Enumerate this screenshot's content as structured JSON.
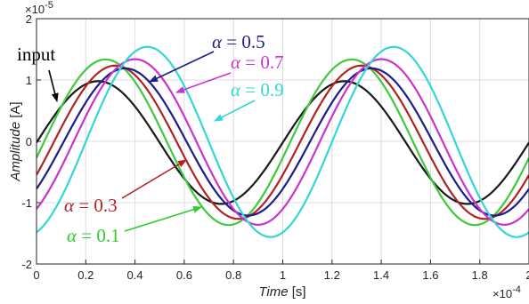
{
  "chart_data": {
    "type": "line",
    "xlabel": "Time",
    "xunit": " [s]",
    "ylabel": "Amplitude",
    "yunit": " [A]",
    "x_multiplier": "×10",
    "x_exponent": "-4",
    "y_multiplier": "×10",
    "y_exponent": "-5",
    "xlim": [
      0,
      0.0002
    ],
    "ylim": [
      -2e-05,
      2e-05
    ],
    "grid": true,
    "x_tick_labels": [
      "0",
      "0.2",
      "0.4",
      "0.6",
      "0.8",
      "1",
      "1.2",
      "1.4",
      "1.6",
      "1.8",
      "2"
    ],
    "y_tick_labels": [
      "-2",
      "-1",
      "0",
      "1",
      "2"
    ],
    "period_s": 0.0001,
    "series": [
      {
        "name": "input",
        "color": "#1a1a1a",
        "amplitude": 1e-05,
        "peak_time_s": 2.5e-05,
        "offset": -2e-07
      },
      {
        "name": "α = 0.1",
        "color": "#3ec93e",
        "amplitude": 1.35e-05,
        "peak_time_s": 2.8e-05,
        "offset": -1.5e-07
      },
      {
        "name": "α = 0.3",
        "color": "#b22222",
        "amplitude": 1.25e-05,
        "peak_time_s": 3.2e-05,
        "offset": -1.5e-07
      },
      {
        "name": "α = 0.5",
        "color": "#1c1c8c",
        "amplitude": 1.2e-05,
        "peak_time_s": 3.6e-05,
        "offset": -1e-07
      },
      {
        "name": "α = 0.7",
        "color": "#cc33cc",
        "amplitude": 1.35e-05,
        "peak_time_s": 4e-05,
        "offset": -1e-07
      },
      {
        "name": "α = 0.9",
        "color": "#33d6d6",
        "amplitude": 1.55e-05,
        "peak_time_s": 4.5e-05,
        "offset": -1e-07
      }
    ],
    "annotations": [
      {
        "series": "input",
        "label": "input",
        "color": "#000000",
        "symbol": "",
        "value": ""
      },
      {
        "series": "α = 0.5",
        "label": " = 0.5",
        "color": "#1c1c8c",
        "symbol": "α",
        "value": " = 0.5"
      },
      {
        "series": "α = 0.7",
        "label": " = 0.7",
        "color": "#cc33cc",
        "symbol": "α",
        "value": "  = 0.7"
      },
      {
        "series": "α = 0.9",
        "label": " = 0.9",
        "color": "#33d6d6",
        "symbol": "α",
        "value": " = 0.9"
      },
      {
        "series": "α = 0.3",
        "label": " = 0.3",
        "color": "#b22222",
        "symbol": "α",
        "value": " = 0.3"
      },
      {
        "series": "α = 0.1",
        "label": " = 0.1",
        "color": "#2ecc2e",
        "symbol": "α",
        "value": " = 0.1"
      }
    ]
  }
}
